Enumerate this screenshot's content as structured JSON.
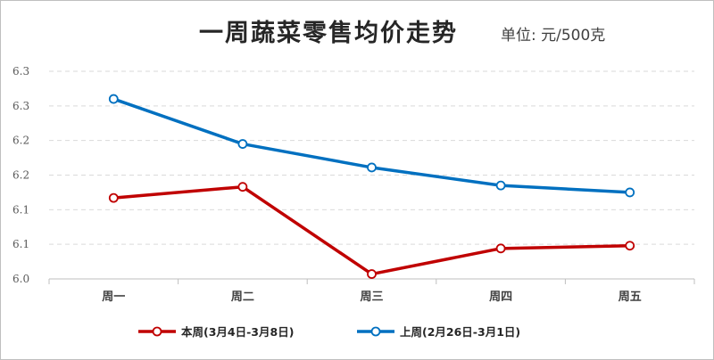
{
  "title": {
    "main": "一周蔬菜零售均价走势",
    "unit": "单位: 元/500克"
  },
  "colors": {
    "this_week": "#c00000",
    "last_week": "#0070c0",
    "grid": "#d9d9d9",
    "axis": "#bfbfbf"
  },
  "chart_data": {
    "type": "line",
    "categories": [
      "周一",
      "周二",
      "周三",
      "周四",
      "周五"
    ],
    "y_ticks": [
      {
        "value": 6.0,
        "label": "6.0"
      },
      {
        "value": 6.05,
        "label": "6.1"
      },
      {
        "value": 6.1,
        "label": "6.1"
      },
      {
        "value": 6.15,
        "label": "6.2"
      },
      {
        "value": 6.2,
        "label": "6.2"
      },
      {
        "value": 6.25,
        "label": "6.3"
      },
      {
        "value": 6.3,
        "label": "6.3"
      }
    ],
    "ylim": [
      6.0,
      6.3
    ],
    "grid": true,
    "legend_position": "bottom",
    "series": [
      {
        "name": "本周(3月4日-3月8日)",
        "values": [
          6.117,
          6.133,
          6.007,
          6.044,
          6.048
        ]
      },
      {
        "name": "上周(2月26日-3月1日)",
        "values": [
          6.26,
          6.195,
          6.161,
          6.135,
          6.125
        ]
      }
    ]
  }
}
